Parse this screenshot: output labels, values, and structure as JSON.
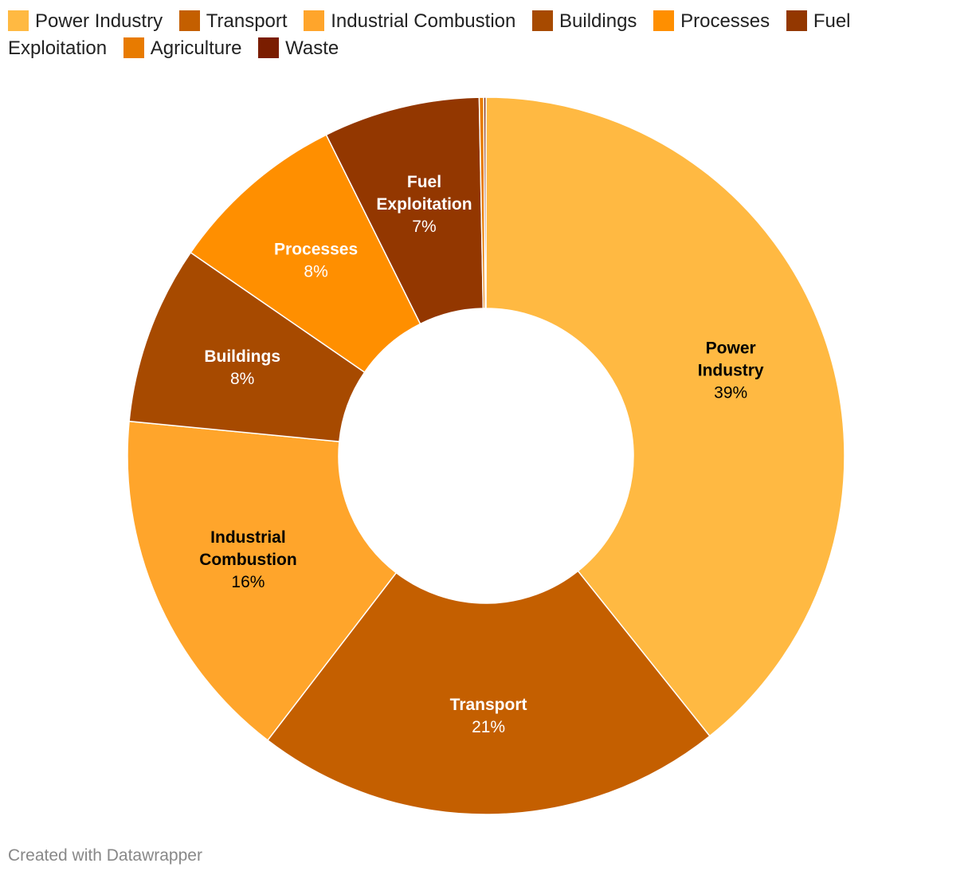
{
  "chart_data": {
    "type": "pie",
    "variant": "donut",
    "unit": "%",
    "slices": [
      {
        "name": "Power Industry",
        "value": 39,
        "color": "#ffb942",
        "label_color": "#000000"
      },
      {
        "name": "Transport",
        "value": 21,
        "color": "#c45f00",
        "label_color": "#ffffff"
      },
      {
        "name": "Industrial Combustion",
        "value": 16,
        "color": "#ffa52b",
        "label_color": "#000000"
      },
      {
        "name": "Buildings",
        "value": 8,
        "color": "#a74a00",
        "label_color": "#ffffff"
      },
      {
        "name": "Processes",
        "value": 8,
        "color": "#ff8f00",
        "label_color": "#ffffff"
      },
      {
        "name": "Fuel Exploitation",
        "value": 7,
        "color": "#933700",
        "label_color": "#ffffff"
      },
      {
        "name": "Agriculture",
        "value": 0.2,
        "color": "#e87b00",
        "label_color": "#ffffff"
      },
      {
        "name": "Waste",
        "value": 0.1,
        "color": "#7a1d00",
        "label_color": "#ffffff"
      }
    ],
    "legend_position": "top"
  },
  "footer": "Created with Datawrapper"
}
